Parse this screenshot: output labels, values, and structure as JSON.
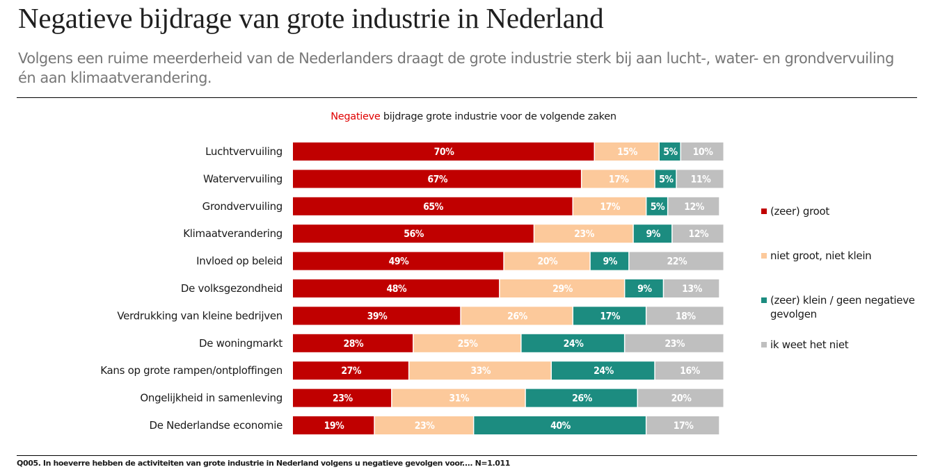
{
  "page": {
    "title": "Negatieve bijdrage van grote industrie in Nederland",
    "subtitle": "Volgens een ruime meerderheid van de Nederlanders draagt de grote industrie sterk bij aan lucht-, water- en grondvervuiling én aan klimaatverandering.",
    "footnote": "Q005. In hoeverre hebben de activiteiten van grote industrie in Nederland volgens u negatieve gevolgen voor.... N=1.011"
  },
  "chart_data": {
    "type": "bar",
    "orientation": "horizontal",
    "stacked": true,
    "title_highlight": "Negatieve",
    "title_rest": " bijdrage grote industrie voor de volgende zaken",
    "title": "Negatieve bijdrage grote industrie voor de volgende zaken",
    "xlabel": "",
    "ylabel": "",
    "xlim": [
      0,
      100
    ],
    "unit": "%",
    "grid": false,
    "legend_position": "right",
    "categories": [
      "Luchtvervuiling",
      "Watervervuiling",
      "Grondvervuiling",
      "Klimaatverandering",
      "Invloed op beleid",
      "De volksgezondheid",
      "Verdrukking van kleine bedrijven",
      "De woningmarkt",
      "Kans op grote rampen/ontploffingen",
      "Ongelijkheid in samenleving",
      "De Nederlandse economie"
    ],
    "series": [
      {
        "name": "(zeer) groot",
        "color": "#c00000",
        "label_color": "#ffffff",
        "values": [
          70,
          67,
          65,
          56,
          49,
          48,
          39,
          28,
          27,
          23,
          19
        ]
      },
      {
        "name": "niet groot, niet klein",
        "color": "#fcc99b",
        "label_color": "#ffffff",
        "values": [
          15,
          17,
          17,
          23,
          20,
          29,
          26,
          25,
          33,
          31,
          23
        ]
      },
      {
        "name": "(zeer) klein / geen negatieve gevolgen",
        "color": "#1c8c80",
        "label_color": "#ffffff",
        "values": [
          5,
          5,
          5,
          9,
          9,
          9,
          17,
          24,
          24,
          26,
          40
        ]
      },
      {
        "name": "ik weet het niet",
        "color": "#bfbfbf",
        "label_color": "#ffffff",
        "values": [
          10,
          11,
          12,
          12,
          22,
          13,
          18,
          23,
          16,
          20,
          17
        ]
      }
    ]
  }
}
